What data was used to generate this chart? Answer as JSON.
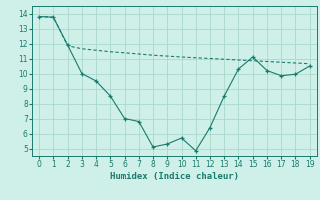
{
  "xlabel": "Humidex (Indice chaleur)",
  "background_color": "#cff0e8",
  "grid_color": "#aad8cc",
  "line_color": "#1a7a6e",
  "x_line1": [
    0,
    1,
    2,
    3,
    4,
    5,
    6,
    7,
    8,
    9,
    10,
    11,
    12,
    13,
    14,
    15,
    16,
    17,
    18,
    19
  ],
  "y_line1": [
    13.8,
    13.75,
    11.9,
    10.0,
    9.5,
    8.5,
    7.0,
    6.8,
    5.1,
    5.3,
    5.7,
    4.85,
    6.4,
    8.5,
    10.3,
    11.1,
    10.2,
    9.85,
    9.95,
    10.5
  ],
  "x_line2": [
    0,
    1,
    2,
    3,
    4,
    5,
    6,
    7,
    8,
    9,
    10,
    11,
    12,
    13,
    14,
    15,
    16,
    17,
    18,
    19
  ],
  "y_line2": [
    13.8,
    13.75,
    11.85,
    11.65,
    11.55,
    11.45,
    11.38,
    11.3,
    11.22,
    11.16,
    11.1,
    11.05,
    11.0,
    10.95,
    10.9,
    10.85,
    10.8,
    10.75,
    10.7,
    10.65
  ],
  "ylim": [
    4.5,
    14.5
  ],
  "xlim": [
    -0.5,
    19.5
  ],
  "yticks": [
    5,
    6,
    7,
    8,
    9,
    10,
    11,
    12,
    13,
    14
  ],
  "xticks": [
    0,
    1,
    2,
    3,
    4,
    5,
    6,
    7,
    8,
    9,
    10,
    11,
    12,
    13,
    14,
    15,
    16,
    17,
    18,
    19
  ],
  "tick_fontsize": 5.5,
  "xlabel_fontsize": 6.5
}
